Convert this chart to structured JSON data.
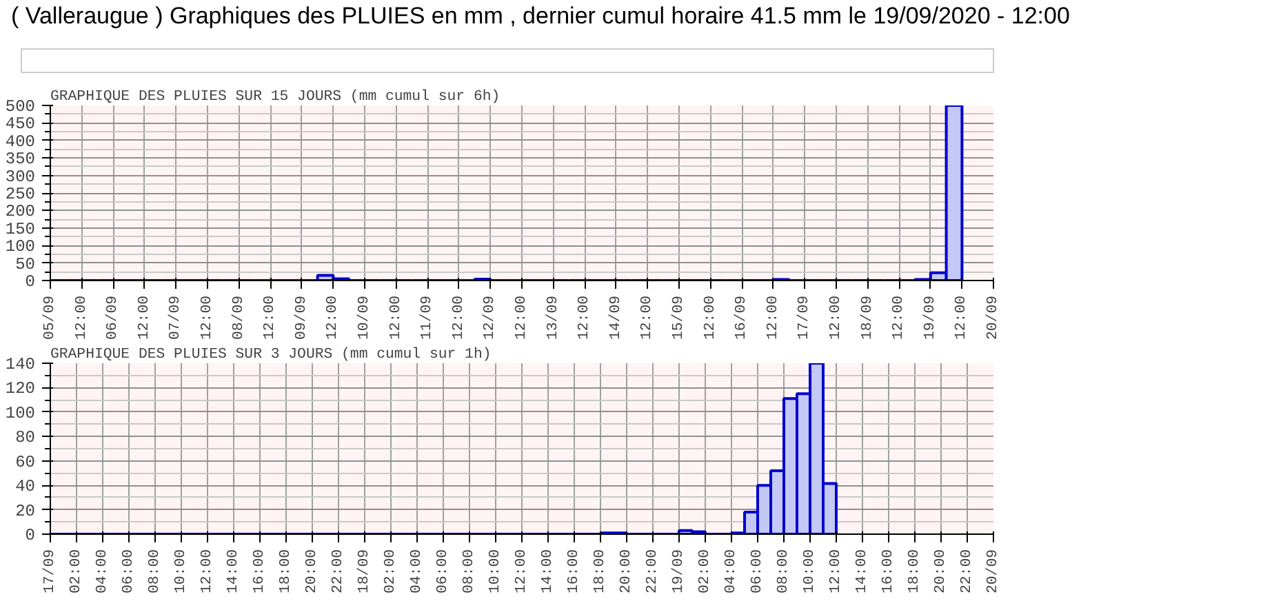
{
  "chart_data": [
    {
      "type": "bar",
      "title": "GRAPHIQUE DES PLUIES SUR 15 JOURS (mm cumul sur 6h)",
      "annotations": [
        "( Valleraugue ) Graphiques des PLUIES en mm , dernier cumul horaire 41.5 mm le 19/09/2020 - 12:00"
      ],
      "colors": [
        "#0000cc",
        "#0000cc",
        "#0000cc",
        "#0000cc",
        "#0000cc",
        "#0000cc",
        "#0000cc",
        "#0000cc",
        "#0000cc",
        "#0000cc",
        "#0000cc",
        "#0000cc",
        "#0000cc",
        "#0000cc",
        "#0000cc",
        "#0000cc",
        "#0000cc",
        "#c4c8f4",
        "#c4c8f4",
        "#0000cc",
        "#0000cc",
        "#0000cc",
        "#0000cc",
        "#0000cc",
        "#0000cc",
        "#0000cc",
        "#0000cc",
        "#c4c8f4",
        "#0000cc",
        "#0000cc",
        "#0000cc",
        "#0000cc",
        "#0000cc",
        "#0000cc",
        "#0000cc",
        "#0000cc",
        "#0000cc",
        "#0000cc",
        "#0000cc",
        "#0000cc",
        "#0000cc",
        "#0000cc",
        "#0000cc",
        "#0000cc",
        "#0000cc",
        "#0000cc",
        "#c4c8f4",
        "#0000cc",
        "#0000cc",
        "#0000cc",
        "#0000cc",
        "#0000cc",
        "#0000cc",
        "#0000cc",
        "#0000cc",
        "#c4c8f4",
        "#c4c8f4",
        "#c4c8f4"
      ],
      "grid": true,
      "xlim": [
        "2020-09-05T00:00",
        "2020-09-20T00:00"
      ],
      "ylim": [
        0,
        500
      ],
      "yticks": [
        0,
        50,
        100,
        150,
        200,
        250,
        300,
        350,
        400,
        450,
        500
      ],
      "xticks": [
        {
          "value": "2020-09-05T00:00",
          "label": "05/09"
        },
        {
          "value": "2020-09-05T12:00",
          "label": "12:00"
        },
        {
          "value": "2020-09-06T00:00",
          "label": "06/09"
        },
        {
          "value": "2020-09-06T12:00",
          "label": "12:00"
        },
        {
          "value": "2020-09-07T00:00",
          "label": "07/09"
        },
        {
          "value": "2020-09-07T12:00",
          "label": "12:00"
        },
        {
          "value": "2020-09-08T00:00",
          "label": "08/09"
        },
        {
          "value": "2020-09-08T12:00",
          "label": "12:00"
        },
        {
          "value": "2020-09-09T00:00",
          "label": "09/09"
        },
        {
          "value": "2020-09-09T12:00",
          "label": "12:00"
        },
        {
          "value": "2020-09-10T00:00",
          "label": "10/09"
        },
        {
          "value": "2020-09-10T12:00",
          "label": "12:00"
        },
        {
          "value": "2020-09-11T00:00",
          "label": "11/09"
        },
        {
          "value": "2020-09-11T12:00",
          "label": "12:00"
        },
        {
          "value": "2020-09-12T00:00",
          "label": "12/09"
        },
        {
          "value": "2020-09-12T12:00",
          "label": "12:00"
        },
        {
          "value": "2020-09-13T00:00",
          "label": "13/09"
        },
        {
          "value": "2020-09-13T12:00",
          "label": "12:00"
        },
        {
          "value": "2020-09-14T00:00",
          "label": "14/09"
        },
        {
          "value": "2020-09-14T12:00",
          "label": "12:00"
        },
        {
          "value": "2020-09-15T00:00",
          "label": "15/09"
        },
        {
          "value": "2020-09-15T12:00",
          "label": "12:00"
        },
        {
          "value": "2020-09-16T00:00",
          "label": "16/09"
        },
        {
          "value": "2020-09-16T12:00",
          "label": "12:00"
        },
        {
          "value": "2020-09-17T00:00",
          "label": "17/09"
        },
        {
          "value": "2020-09-17T12:00",
          "label": "12:00"
        },
        {
          "value": "2020-09-18T00:00",
          "label": "18/09"
        },
        {
          "value": "2020-09-18T12:00",
          "label": "12:00"
        },
        {
          "value": "2020-09-19T00:00",
          "label": "19/09"
        },
        {
          "value": "2020-09-19T12:00",
          "label": "12:00"
        },
        {
          "value": "2020-09-20T00:00",
          "label": "20/09"
        }
      ],
      "x": [
        "2020-09-05T03:00",
        "2020-09-05T09:00",
        "2020-09-05T15:00",
        "2020-09-05T21:00",
        "2020-09-06T03:00",
        "2020-09-06T09:00",
        "2020-09-06T15:00",
        "2020-09-06T21:00",
        "2020-09-07T03:00",
        "2020-09-07T09:00",
        "2020-09-07T15:00",
        "2020-09-07T21:00",
        "2020-09-08T03:00",
        "2020-09-08T09:00",
        "2020-09-08T15:00",
        "2020-09-08T21:00",
        "2020-09-09T03:00",
        "2020-09-09T09:00",
        "2020-09-09T15:00",
        "2020-09-09T21:00",
        "2020-09-10T03:00",
        "2020-09-10T09:00",
        "2020-09-10T15:00",
        "2020-09-10T21:00",
        "2020-09-11T03:00",
        "2020-09-11T09:00",
        "2020-09-11T15:00",
        "2020-09-11T21:00",
        "2020-09-12T03:00",
        "2020-09-12T09:00",
        "2020-09-12T15:00",
        "2020-09-12T21:00",
        "2020-09-13T03:00",
        "2020-09-13T09:00",
        "2020-09-13T15:00",
        "2020-09-13T21:00",
        "2020-09-14T03:00",
        "2020-09-14T09:00",
        "2020-09-14T15:00",
        "2020-09-14T21:00",
        "2020-09-15T03:00",
        "2020-09-15T09:00",
        "2020-09-15T15:00",
        "2020-09-15T21:00",
        "2020-09-16T03:00",
        "2020-09-16T09:00",
        "2020-09-16T15:00",
        "2020-09-16T21:00",
        "2020-09-17T03:00",
        "2020-09-17T09:00",
        "2020-09-17T15:00",
        "2020-09-17T21:00",
        "2020-09-18T03:00",
        "2020-09-18T09:00",
        "2020-09-18T15:00",
        "2020-09-18T21:00",
        "2020-09-19T03:00",
        "2020-09-19T09:00"
      ],
      "values": [
        0,
        0,
        0,
        0,
        0,
        0,
        0,
        0,
        0,
        0,
        0,
        0,
        0,
        0,
        0,
        0,
        0,
        15,
        5,
        0,
        0,
        0,
        0,
        0,
        0,
        0,
        0,
        4,
        0,
        0,
        0,
        0,
        0,
        0,
        0,
        0,
        0,
        0,
        0,
        0,
        0,
        0,
        0,
        0,
        0,
        0,
        3,
        0,
        0,
        0,
        0,
        0,
        0,
        0,
        0,
        3,
        22,
        500
      ]
    },
    {
      "type": "bar",
      "title": "GRAPHIQUE DES PLUIES SUR 3 JOURS (mm cumul sur 1h)",
      "colors": [
        "#0000cc",
        "#0000cc",
        "#0000cc",
        "#0000cc",
        "#0000cc",
        "#0000cc",
        "#0000cc",
        "#0000cc",
        "#0000cc",
        "#0000cc",
        "#0000cc",
        "#0000cc",
        "#0000cc",
        "#0000cc",
        "#0000cc",
        "#0000cc",
        "#0000cc",
        "#0000cc",
        "#0000cc",
        "#0000cc",
        "#0000cc",
        "#0000cc",
        "#0000cc",
        "#0000cc",
        "#0000cc",
        "#0000cc",
        "#0000cc",
        "#0000cc",
        "#0000cc",
        "#0000cc",
        "#0000cc",
        "#0000cc",
        "#0000cc",
        "#0000cc",
        "#0000cc",
        "#0000cc",
        "#0000cc",
        "#0000cc",
        "#0000cc",
        "#0000cc",
        "#0000cc",
        "#0000cc",
        "#c4c8f4",
        "#c4c8f4",
        "#0000cc",
        "#0000cc",
        "#0000cc",
        "#0000cc",
        "#c4c8f4",
        "#c4c8f4",
        "#0000cc",
        "#0000cc",
        "#c4c8f4",
        "#c4c8f4",
        "#c4c8f4",
        "#c4c8f4",
        "#c4c8f4",
        "#c4c8f4",
        "#c4c8f4",
        "#c4c8f4"
      ],
      "grid": true,
      "xlim": [
        "2020-09-17T00:00",
        "2020-09-20T00:00"
      ],
      "ylim": [
        0,
        140
      ],
      "yticks": [
        0,
        20,
        40,
        60,
        80,
        100,
        120,
        140
      ],
      "xticks": [
        {
          "value": "2020-09-17T00:00",
          "label": "17/09"
        },
        {
          "value": "2020-09-17T02:00",
          "label": "02:00"
        },
        {
          "value": "2020-09-17T04:00",
          "label": "04:00"
        },
        {
          "value": "2020-09-17T06:00",
          "label": "06:00"
        },
        {
          "value": "2020-09-17T08:00",
          "label": "08:00"
        },
        {
          "value": "2020-09-17T10:00",
          "label": "10:00"
        },
        {
          "value": "2020-09-17T12:00",
          "label": "12:00"
        },
        {
          "value": "2020-09-17T14:00",
          "label": "14:00"
        },
        {
          "value": "2020-09-17T16:00",
          "label": "16:00"
        },
        {
          "value": "2020-09-17T18:00",
          "label": "18:00"
        },
        {
          "value": "2020-09-17T20:00",
          "label": "20:00"
        },
        {
          "value": "2020-09-17T22:00",
          "label": "22:00"
        },
        {
          "value": "2020-09-18T00:00",
          "label": "18/09"
        },
        {
          "value": "2020-09-18T02:00",
          "label": "02:00"
        },
        {
          "value": "2020-09-18T04:00",
          "label": "04:00"
        },
        {
          "value": "2020-09-18T06:00",
          "label": "06:00"
        },
        {
          "value": "2020-09-18T08:00",
          "label": "08:00"
        },
        {
          "value": "2020-09-18T10:00",
          "label": "10:00"
        },
        {
          "value": "2020-09-18T12:00",
          "label": "12:00"
        },
        {
          "value": "2020-09-18T14:00",
          "label": "14:00"
        },
        {
          "value": "2020-09-18T16:00",
          "label": "16:00"
        },
        {
          "value": "2020-09-18T18:00",
          "label": "18:00"
        },
        {
          "value": "2020-09-18T20:00",
          "label": "20:00"
        },
        {
          "value": "2020-09-18T22:00",
          "label": "22:00"
        },
        {
          "value": "2020-09-19T00:00",
          "label": "19/09"
        },
        {
          "value": "2020-09-19T02:00",
          "label": "02:00"
        },
        {
          "value": "2020-09-19T04:00",
          "label": "04:00"
        },
        {
          "value": "2020-09-19T06:00",
          "label": "06:00"
        },
        {
          "value": "2020-09-19T08:00",
          "label": "08:00"
        },
        {
          "value": "2020-09-19T10:00",
          "label": "10:00"
        },
        {
          "value": "2020-09-19T12:00",
          "label": "12:00"
        },
        {
          "value": "2020-09-19T14:00",
          "label": "14:00"
        },
        {
          "value": "2020-09-19T16:00",
          "label": "16:00"
        },
        {
          "value": "2020-09-19T18:00",
          "label": "18:00"
        },
        {
          "value": "2020-09-19T20:00",
          "label": "20:00"
        },
        {
          "value": "2020-09-19T22:00",
          "label": "22:00"
        },
        {
          "value": "2020-09-20T00:00",
          "label": "20/09"
        }
      ],
      "x": [
        "2020-09-17T00:30",
        "2020-09-17T01:30",
        "2020-09-17T02:30",
        "2020-09-17T03:30",
        "2020-09-17T04:30",
        "2020-09-17T05:30",
        "2020-09-17T06:30",
        "2020-09-17T07:30",
        "2020-09-17T08:30",
        "2020-09-17T09:30",
        "2020-09-17T10:30",
        "2020-09-17T11:30",
        "2020-09-17T12:30",
        "2020-09-17T13:30",
        "2020-09-17T14:30",
        "2020-09-17T15:30",
        "2020-09-17T16:30",
        "2020-09-17T17:30",
        "2020-09-17T18:30",
        "2020-09-17T19:30",
        "2020-09-17T20:30",
        "2020-09-17T21:30",
        "2020-09-17T22:30",
        "2020-09-17T23:30",
        "2020-09-18T00:30",
        "2020-09-18T01:30",
        "2020-09-18T02:30",
        "2020-09-18T03:30",
        "2020-09-18T04:30",
        "2020-09-18T05:30",
        "2020-09-18T06:30",
        "2020-09-18T07:30",
        "2020-09-18T08:30",
        "2020-09-18T09:30",
        "2020-09-18T10:30",
        "2020-09-18T11:30",
        "2020-09-18T12:30",
        "2020-09-18T13:30",
        "2020-09-18T14:30",
        "2020-09-18T15:30",
        "2020-09-18T16:30",
        "2020-09-18T17:30",
        "2020-09-18T18:30",
        "2020-09-18T19:30",
        "2020-09-18T20:30",
        "2020-09-18T21:30",
        "2020-09-18T22:30",
        "2020-09-18T23:30",
        "2020-09-19T00:30",
        "2020-09-19T01:30",
        "2020-09-19T02:30",
        "2020-09-19T03:30",
        "2020-09-19T04:30",
        "2020-09-19T05:30",
        "2020-09-19T06:30",
        "2020-09-19T07:30",
        "2020-09-19T08:30",
        "2020-09-19T09:30",
        "2020-09-19T10:30",
        "2020-09-19T11:30"
      ],
      "values": [
        0,
        0,
        0,
        0,
        0,
        0,
        0,
        0,
        0,
        0,
        0,
        0,
        0,
        0,
        0,
        0,
        0,
        0,
        0,
        0,
        0,
        0,
        0,
        0,
        0,
        0,
        0,
        0,
        0,
        0,
        0,
        0,
        0,
        0,
        0,
        0,
        0,
        0,
        0,
        0,
        0,
        0,
        1,
        1,
        0,
        0,
        0,
        0,
        3,
        2,
        0,
        0,
        1,
        18,
        40,
        52,
        111,
        115,
        140,
        41.5
      ]
    }
  ]
}
